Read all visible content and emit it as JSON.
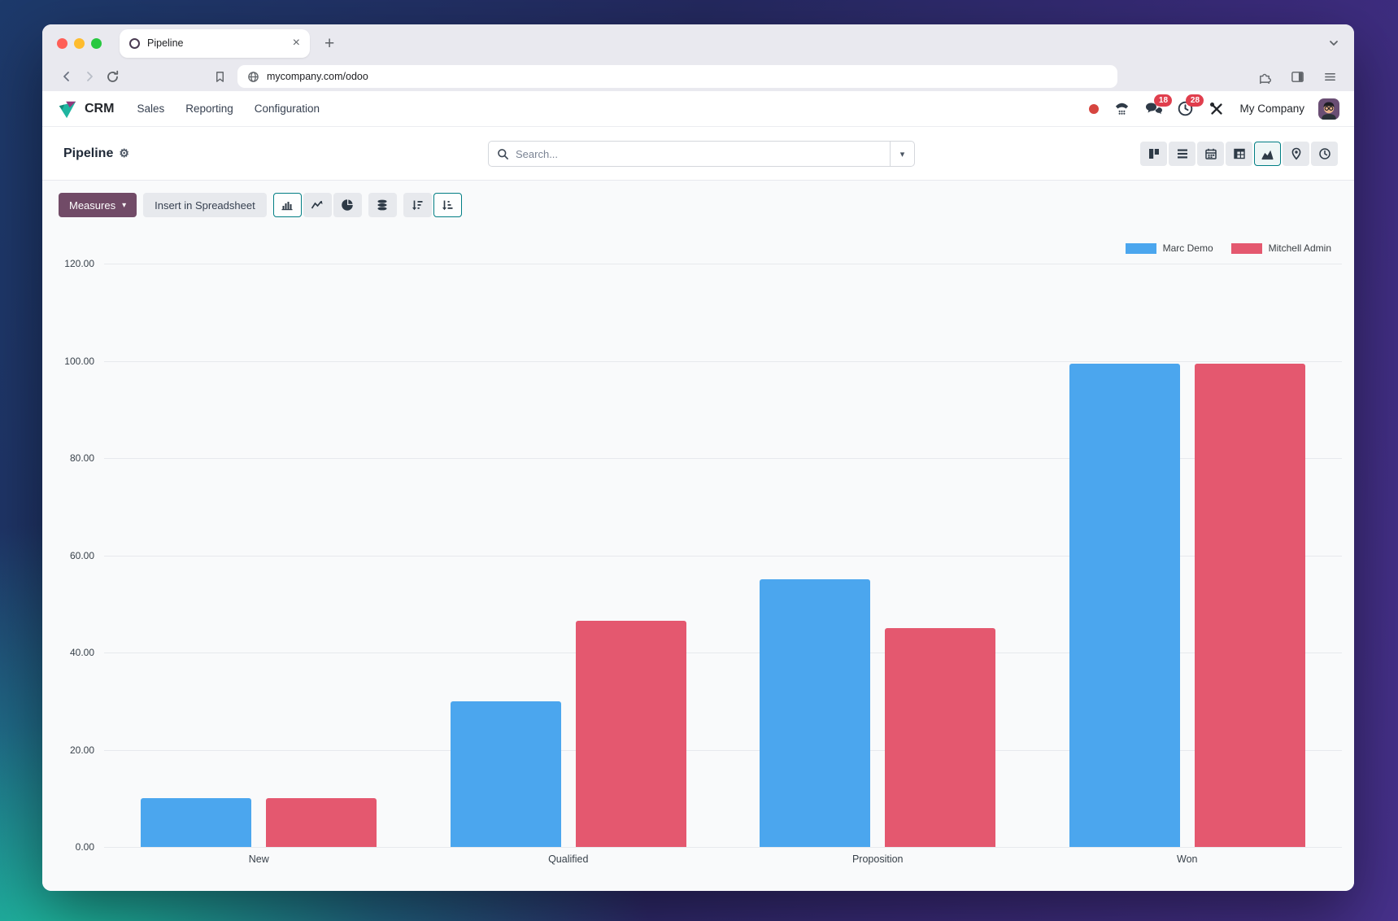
{
  "browser": {
    "tab_title": "Pipeline",
    "url": "mycompany.com/odoo"
  },
  "nav": {
    "app_name": "CRM",
    "menus": [
      "Sales",
      "Reporting",
      "Configuration"
    ],
    "chat_badge": "18",
    "activity_badge": "28",
    "company": "My Company"
  },
  "page": {
    "title": "Pipeline"
  },
  "search": {
    "placeholder": "Search..."
  },
  "toolbar": {
    "measures_label": "Measures",
    "insert_spreadsheet_label": "Insert in Spreadsheet"
  },
  "theme": {
    "primary_button": "#714B67",
    "active_border": "#017E84",
    "badge": "#E03E4D"
  },
  "chart_data": {
    "type": "bar",
    "categories": [
      "New",
      "Qualified",
      "Proposition",
      "Won"
    ],
    "series": [
      {
        "name": "Marc Demo",
        "color": "#4BA6EE",
        "values": [
          10,
          30,
          55,
          99.5
        ]
      },
      {
        "name": "Mitchell Admin",
        "color": "#E4586F",
        "values": [
          10,
          46.5,
          45,
          99.5
        ]
      }
    ],
    "title": "",
    "xlabel": "",
    "ylabel": "",
    "ylim": [
      0,
      120
    ],
    "ytick_step": 20,
    "ytick_decimals": 2,
    "grid": true,
    "legend_position": "top-right"
  }
}
